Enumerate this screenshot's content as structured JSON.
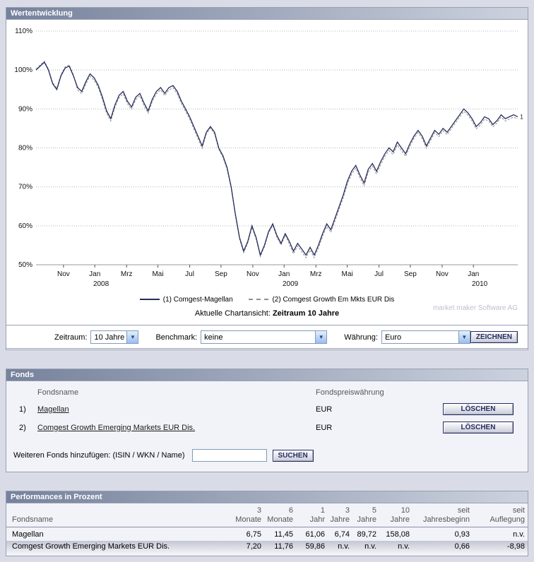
{
  "wertentwicklung": {
    "title": "Wertentwicklung",
    "watermark": "market maker Software AG",
    "chart_note_label": "Aktuelle Chartansicht:",
    "chart_note_value": "Zeitraum 10 Jahre",
    "legend": [
      {
        "label": "(1) Comgest-Magellan"
      },
      {
        "label": "(2) Comgest Growth Em Mkts EUR Dis"
      }
    ],
    "controls": {
      "zeitraum_label": "Zeitraum:",
      "zeitraum_value": "10 Jahre",
      "benchmark_label": "Benchmark:",
      "benchmark_value": "keine",
      "waehrung_label": "Währung:",
      "waehrung_value": "Euro",
      "draw_button": "ZEICHNEN"
    }
  },
  "chart_data": {
    "type": "line",
    "title": "Wertentwicklung",
    "ylabel": "%",
    "ylim": [
      50,
      110
    ],
    "yticks": [
      50,
      60,
      70,
      80,
      90,
      100,
      110
    ],
    "grid": "horizontal-dotted",
    "legend_position": "bottom",
    "end_marker": "1",
    "x_ticks": [
      {
        "f": 0.057,
        "label": "Nov"
      },
      {
        "f": 0.122,
        "label": "Jan"
      },
      {
        "f": 0.188,
        "label": "Mrz"
      },
      {
        "f": 0.253,
        "label": "Mai"
      },
      {
        "f": 0.319,
        "label": "Jul"
      },
      {
        "f": 0.384,
        "label": "Sep"
      },
      {
        "f": 0.45,
        "label": "Nov"
      },
      {
        "f": 0.515,
        "label": "Jan"
      },
      {
        "f": 0.581,
        "label": "Mrz"
      },
      {
        "f": 0.646,
        "label": "Mai"
      },
      {
        "f": 0.712,
        "label": "Jul"
      },
      {
        "f": 0.777,
        "label": "Sep"
      },
      {
        "f": 0.843,
        "label": "Nov"
      },
      {
        "f": 0.908,
        "label": "Jan"
      }
    ],
    "year_labels": [
      {
        "f": 0.135,
        "label": "2008"
      },
      {
        "f": 0.528,
        "label": "2009"
      },
      {
        "f": 0.921,
        "label": "2010"
      }
    ],
    "series": [
      {
        "name": "Comgest-Magellan",
        "color": "#262c5c",
        "dash": "solid",
        "values": [
          100,
          101,
          102,
          100,
          96.5,
          95,
          98.5,
          100.5,
          101,
          98.5,
          95.5,
          94.5,
          97,
          99,
          98,
          96,
          93,
          89.5,
          87.5,
          91,
          93.5,
          94.5,
          92,
          90.5,
          93,
          94,
          91.5,
          89.5,
          92.5,
          94.5,
          95.5,
          94,
          95.5,
          96,
          94.5,
          92,
          90,
          88,
          85.5,
          83,
          80.5,
          84,
          85.5,
          84,
          80,
          78,
          75,
          70,
          63,
          57,
          53.5,
          56,
          60,
          57,
          52.5,
          55,
          58.5,
          60.5,
          57.5,
          55.5,
          58,
          56,
          53.5,
          55.5,
          54,
          52.5,
          54.5,
          52.5,
          55,
          58,
          60.5,
          59,
          62,
          65,
          68,
          71.5,
          74,
          75.5,
          73,
          71,
          74.5,
          76,
          74,
          76.5,
          78.5,
          80,
          79,
          81.5,
          80,
          78.5,
          81,
          83,
          84.5,
          83,
          80.5,
          82.5,
          84.5,
          83.5,
          85,
          84,
          85.5,
          87,
          88.5,
          90,
          89,
          87.5,
          85.5,
          86.5,
          88,
          87.5,
          86,
          87,
          88.5,
          87.5,
          88,
          88.5,
          88
        ]
      },
      {
        "name": "Comgest Growth Em Mkts EUR Dis",
        "color": "#8f8f8f",
        "dash": "dashed",
        "values": [
          100.3,
          101.3,
          102.3,
          100.3,
          96.8,
          95.3,
          98.8,
          100.8,
          101.3,
          98.8,
          94.9,
          93.9,
          96.4,
          98.4,
          97.4,
          95.4,
          92.4,
          88.9,
          86.9,
          90.4,
          92.9,
          93.9,
          91.4,
          89.9,
          92.4,
          93.4,
          90.9,
          88.9,
          91.9,
          93.9,
          94.9,
          93.4,
          94.9,
          95.4,
          93.9,
          91.4,
          89.4,
          87.4,
          84.9,
          82.4,
          79.9,
          83.6,
          85.1,
          83.6,
          79.6,
          77.6,
          74.6,
          69.6,
          62.6,
          56.6,
          53.1,
          55.6,
          59.6,
          56.6,
          52.1,
          54.6,
          58.1,
          60.1,
          57.1,
          55.1,
          57.6,
          55.3,
          52.8,
          54.8,
          53.3,
          51.8,
          53.8,
          51.8,
          54.3,
          57.3,
          59.8,
          58.3,
          61.3,
          64.3,
          67.3,
          70.8,
          73.3,
          74.8,
          72.3,
          70.3,
          73.8,
          75.3,
          73.3,
          75.8,
          77.8,
          79.3,
          78.3,
          80.8,
          79.3,
          77.8,
          80.3,
          82.4,
          83.9,
          82.4,
          79.9,
          81.9,
          83.9,
          82.9,
          84.4,
          83.4,
          84.9,
          86.4,
          87.9,
          89.4,
          88.4,
          86.9,
          84.9,
          85.9,
          87.4,
          86.9,
          85.4,
          86.4,
          87.9,
          86.9,
          87.4,
          87.9,
          87.4
        ]
      }
    ]
  },
  "fonds": {
    "title": "Fonds",
    "col_name": "Fondsname",
    "col_currency": "Fondspreiswährung",
    "rows": [
      {
        "num": "1)",
        "name": "Magellan",
        "currency": "EUR",
        "delete_label": "LÖSCHEN"
      },
      {
        "num": "2)",
        "name": "Comgest Growth Emerging Markets EUR Dis.",
        "currency": "EUR",
        "delete_label": "LÖSCHEN"
      }
    ],
    "add_label": "Weiteren Fonds hinzufügen: (ISIN / WKN / Name)",
    "search_button": "SUCHEN"
  },
  "performances": {
    "title": "Performances in Prozent",
    "col_name": "Fondsname",
    "columns": [
      [
        "3",
        "Monate"
      ],
      [
        "6",
        "Monate"
      ],
      [
        "1",
        "Jahr"
      ],
      [
        "3",
        "Jahre"
      ],
      [
        "5",
        "Jahre"
      ],
      [
        "10",
        "Jahre"
      ],
      [
        "seit",
        "Jahresbeginn"
      ],
      [
        "seit",
        "Auflegung"
      ]
    ],
    "rows": [
      {
        "name": "Magellan",
        "values": [
          "6,75",
          "11,45",
          "61,06",
          "6,74",
          "89,72",
          "158,08",
          "0,93",
          "n.v."
        ]
      },
      {
        "name": "Comgest Growth Emerging Markets EUR Dis.",
        "values": [
          "7,20",
          "11,76",
          "59,86",
          "n.v.",
          "n.v.",
          "n.v.",
          "0,66",
          "-8,98"
        ]
      }
    ]
  }
}
